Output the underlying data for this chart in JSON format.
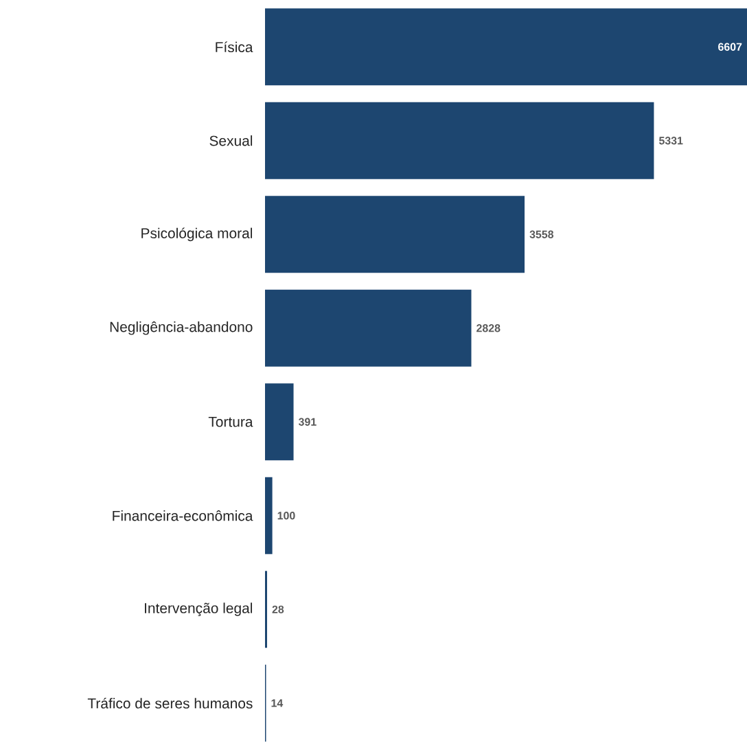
{
  "chart_data": {
    "type": "bar",
    "orientation": "horizontal",
    "categories": [
      "Física",
      "Sexual",
      "Psicológica moral",
      "Negligência-abandono",
      "Tortura",
      "Financeira-econômica",
      "Intervenção legal",
      "Tráfico de seres humanos"
    ],
    "values": [
      6607,
      5331,
      3558,
      2828,
      391,
      100,
      28,
      14
    ],
    "color": "#1d4670",
    "tick_labels": "y",
    "data_labels": true
  }
}
